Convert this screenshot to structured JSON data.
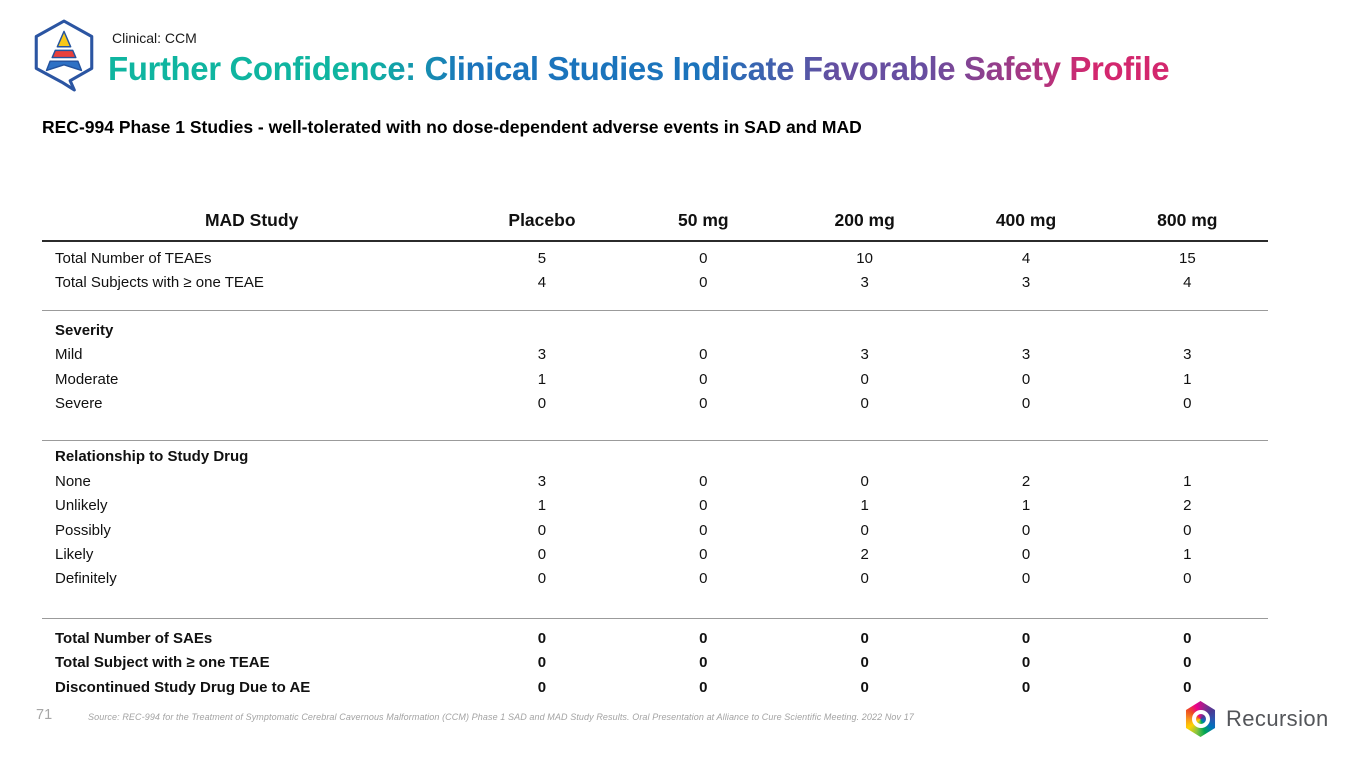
{
  "slide": {
    "eyebrow": "Clinical: CCM",
    "title": "Further Confidence: Clinical Studies Indicate Favorable Safety Profile",
    "title_gradient": [
      "#0FB5A0",
      "#1B74BC",
      "#674EA0",
      "#D3276E"
    ],
    "subtitle": "REC-994 Phase 1 Studies - well-tolerated with no dose-dependent adverse events in SAD and MAD"
  },
  "table": {
    "columns": [
      "MAD Study",
      "Placebo",
      "50 mg",
      "200 mg",
      "400 mg",
      "800 mg"
    ],
    "sections": [
      {
        "header": null,
        "rows": [
          {
            "label": "Total Number of TEAEs",
            "bold": false,
            "values": [
              "5",
              "0",
              "10",
              "4",
              "15"
            ]
          },
          {
            "label": "Total Subjects with ≥ one TEAE",
            "bold": false,
            "values": [
              "4",
              "0",
              "3",
              "3",
              "4"
            ]
          }
        ]
      },
      {
        "header": "Severity",
        "rows": [
          {
            "label": "Mild",
            "bold": false,
            "values": [
              "3",
              "0",
              "3",
              "3",
              "3"
            ]
          },
          {
            "label": "Moderate",
            "bold": false,
            "values": [
              "1",
              "0",
              "0",
              "0",
              "1"
            ]
          },
          {
            "label": "Severe",
            "bold": false,
            "values": [
              "0",
              "0",
              "0",
              "0",
              "0"
            ]
          }
        ]
      },
      {
        "header": "Relationship to Study Drug",
        "rows": [
          {
            "label": "None",
            "bold": false,
            "values": [
              "3",
              "0",
              "0",
              "2",
              "1"
            ]
          },
          {
            "label": "Unlikely",
            "bold": false,
            "values": [
              "1",
              "0",
              "1",
              "1",
              "2"
            ]
          },
          {
            "label": "Possibly",
            "bold": false,
            "values": [
              "0",
              "0",
              "0",
              "0",
              "0"
            ]
          },
          {
            "label": "Likely",
            "bold": false,
            "values": [
              "0",
              "0",
              "2",
              "0",
              "1"
            ]
          },
          {
            "label": "Definitely",
            "bold": false,
            "values": [
              "0",
              "0",
              "0",
              "0",
              "0"
            ]
          }
        ]
      },
      {
        "header": null,
        "rows": [
          {
            "label": "Total Number of SAEs",
            "bold": true,
            "values": [
              "0",
              "0",
              "0",
              "0",
              "0"
            ]
          },
          {
            "label": "Total Subject with ≥ one TEAE",
            "bold": true,
            "values": [
              "0",
              "0",
              "0",
              "0",
              "0"
            ]
          },
          {
            "label": "Discontinued Study Drug Due to AE",
            "bold": true,
            "values": [
              "0",
              "0",
              "0",
              "0",
              "0"
            ]
          }
        ]
      }
    ]
  },
  "footer": {
    "page_number": "71",
    "source": "Source: REC-994 for the Treatment of Symptomatic Cerebral Cavernous Malformation (CCM) Phase 1 SAD and MAD Study Results. Oral Presentation at Alliance to Cure Scientific Meeting. 2022 Nov 17",
    "brand": "Recursion"
  }
}
